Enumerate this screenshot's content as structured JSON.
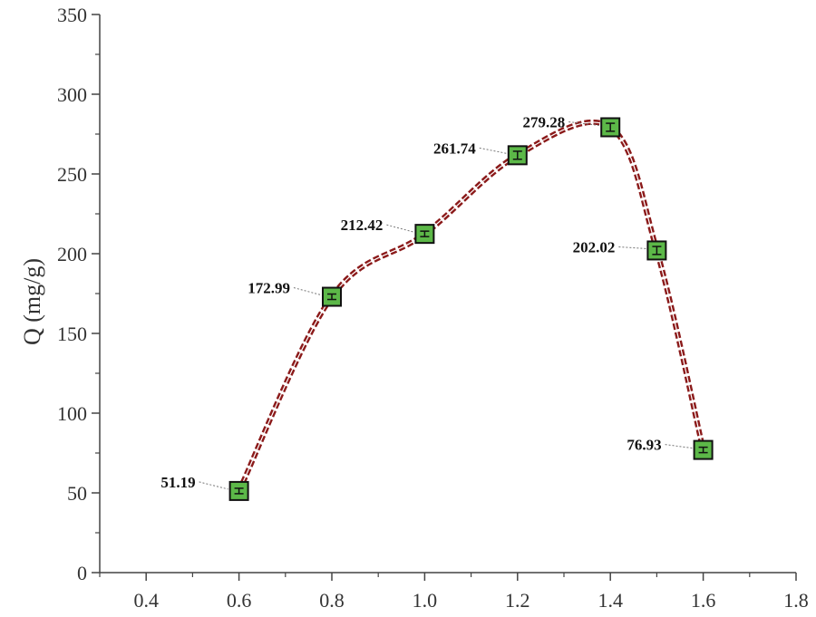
{
  "chart_data": {
    "type": "line",
    "title": "",
    "xlabel": "",
    "ylabel": "Q (mg/g)",
    "xlim": [
      0.3,
      1.8
    ],
    "ylim": [
      0,
      350
    ],
    "x_ticks": [
      0.4,
      0.6,
      0.8,
      1.0,
      1.2,
      1.4,
      1.6,
      1.8
    ],
    "x_tick_labels": [
      "0.4",
      "0.6",
      "0.8",
      "1.0",
      "1.2",
      "1.4",
      "1.6",
      "1.8"
    ],
    "y_ticks": [
      0,
      50,
      100,
      150,
      200,
      250,
      300,
      350
    ],
    "y_tick_labels": [
      "0",
      "50",
      "100",
      "150",
      "200",
      "250",
      "300",
      "350"
    ],
    "grid": false,
    "series": [
      {
        "x": [
          0.6,
          0.8,
          1.0,
          1.2,
          1.4,
          1.5,
          1.6
        ],
        "y": [
          51.19,
          172.99,
          212.42,
          261.74,
          279.28,
          202.02,
          76.93
        ],
        "error": [
          1.5,
          1.5,
          1.5,
          2.5,
          2.5,
          2.5,
          1.5
        ],
        "labels": [
          "51.19",
          "172.99",
          "212.42",
          "261.74",
          "279.28",
          "202.02",
          "76.93"
        ],
        "line_style": "dashed-double",
        "line_color": "#8b1a1a",
        "marker": "square",
        "marker_fill": "#5cb848",
        "marker_edge": "#111111"
      }
    ]
  }
}
